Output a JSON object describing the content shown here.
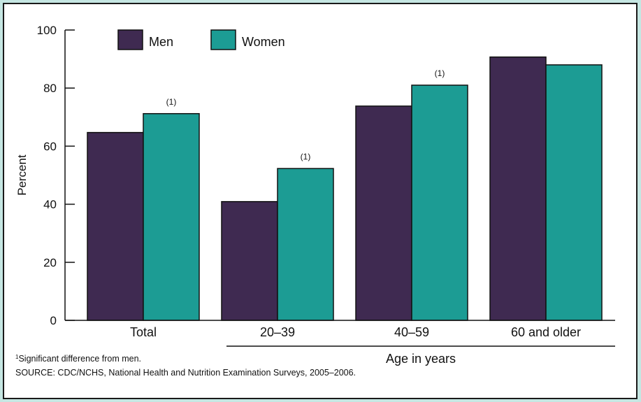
{
  "chart_data": {
    "type": "bar",
    "categories": [
      "Total",
      "20–39",
      "40–59",
      "60 and older"
    ],
    "series": [
      {
        "name": "Men",
        "values": [
          64.7,
          40.9,
          73.8,
          90.7
        ],
        "color": "#3f2a51"
      },
      {
        "name": "Women",
        "values": [
          71.2,
          52.3,
          81.0,
          88.0
        ],
        "color": "#1c9c94"
      }
    ],
    "annotations": [
      {
        "category": "Total",
        "series": "Women",
        "text": "(1)"
      },
      {
        "category": "20–39",
        "series": "Women",
        "text": "(1)"
      },
      {
        "category": "40–59",
        "series": "Women",
        "text": "(1)"
      }
    ],
    "ylabel": "Percent",
    "xlabel": "Age in years",
    "ylim": [
      0,
      100
    ],
    "yticks": [
      0,
      20,
      40,
      60,
      80,
      100
    ],
    "grid": false,
    "legend_position": "top-left"
  },
  "footnotes": {
    "note_marker": "1",
    "note_text": "Significant difference from men.",
    "source": "SOURCE: CDC/NCHS, National Health and Nutrition Examination Surveys, 2005–2006."
  },
  "colors": {
    "background": "#c5e6e2",
    "men": "#3f2a51",
    "women": "#1c9c94"
  }
}
